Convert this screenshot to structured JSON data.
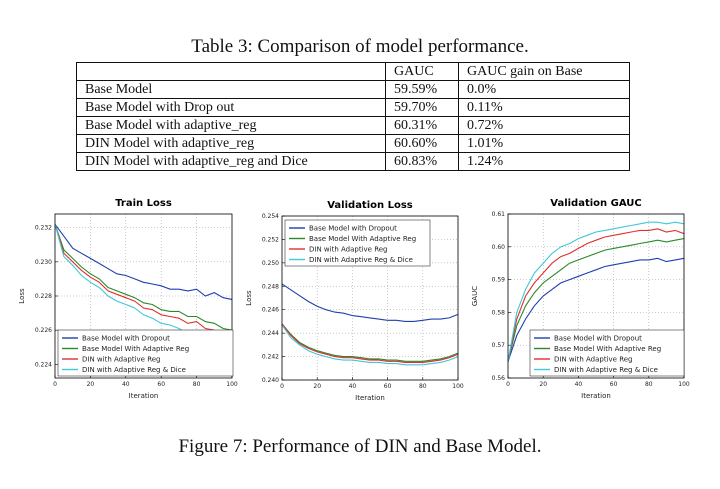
{
  "table": {
    "caption": "Table 3: Comparison of model performance.",
    "header": [
      "",
      "GAUC",
      "GAUC gain on Base"
    ],
    "rows": [
      {
        "model": "Base Model",
        "gauc": "59.59%",
        "gain": "0.0%"
      },
      {
        "model": "Base Model with Drop out",
        "gauc": "59.70%",
        "gain": "0.11%"
      },
      {
        "model": "Base Model with adaptive_reg",
        "gauc": "60.31%",
        "gain": "0.72%"
      },
      {
        "model": "DIN Model with adaptive_reg",
        "gauc": "60.60%",
        "gain": "1.01%"
      },
      {
        "model": "DIN Model with adaptive_reg and Dice",
        "gauc": "60.83%",
        "gain": "1.24%"
      }
    ]
  },
  "figure_caption": "Figure 7: Performance of DIN and Base Model.",
  "colors": {
    "dropout": "#1f3fb0",
    "adaptive": "#2a8a2a",
    "din": "#e03030",
    "dice": "#40c8d8"
  },
  "chart_data": [
    {
      "type": "line",
      "title": "Train Loss",
      "xlabel": "Iteration",
      "ylabel": "Loss",
      "xlim": [
        0,
        100
      ],
      "ylim": [
        0.2232,
        0.2328
      ],
      "xticks": [
        0,
        20,
        40,
        60,
        80,
        100
      ],
      "yticks": [
        0.224,
        0.226,
        0.228,
        0.23,
        0.232
      ],
      "ytick_labels": [
        "0.224",
        "0.226",
        "0.228",
        "0.230",
        "0.232"
      ],
      "grid": true,
      "legend_position": "lower-left",
      "x": [
        0,
        5,
        10,
        15,
        20,
        25,
        30,
        35,
        40,
        45,
        50,
        55,
        60,
        65,
        70,
        75,
        80,
        85,
        90,
        95,
        100
      ],
      "series": [
        {
          "name": "Base Model with Dropout",
          "values": [
            0.2322,
            0.2315,
            0.2308,
            0.2305,
            0.2302,
            0.2299,
            0.2296,
            0.2293,
            0.2292,
            0.229,
            0.2288,
            0.2287,
            0.2286,
            0.2284,
            0.2284,
            0.2283,
            0.2284,
            0.228,
            0.2282,
            0.2279,
            0.2278
          ]
        },
        {
          "name": "Base Model With Adaptive Reg",
          "values": [
            0.2322,
            0.2307,
            0.2302,
            0.2297,
            0.2293,
            0.229,
            0.2285,
            0.2283,
            0.2281,
            0.2279,
            0.2276,
            0.2275,
            0.2272,
            0.2271,
            0.2271,
            0.2268,
            0.2268,
            0.2265,
            0.2264,
            0.2261,
            0.226
          ]
        },
        {
          "name": "DIN with Adaptive Reg",
          "values": [
            0.2322,
            0.2305,
            0.23,
            0.2295,
            0.2291,
            0.2288,
            0.2283,
            0.2281,
            0.2279,
            0.2277,
            0.2273,
            0.2272,
            0.2269,
            0.2268,
            0.2267,
            0.2264,
            0.2265,
            0.2261,
            0.226,
            0.2257,
            0.2256
          ]
        },
        {
          "name": "DIN with Adaptive Reg & Dice",
          "values": [
            0.2322,
            0.2303,
            0.2298,
            0.2292,
            0.2288,
            0.2285,
            0.228,
            0.2277,
            0.2275,
            0.2273,
            0.2269,
            0.2267,
            0.2264,
            0.2263,
            0.2261,
            0.2258,
            0.2259,
            0.2255,
            0.2253,
            0.2249,
            0.2245
          ]
        }
      ]
    },
    {
      "type": "line",
      "title": "Validation Loss",
      "xlabel": "Iteration",
      "ylabel": "Loss",
      "xlim": [
        0,
        100
      ],
      "ylim": [
        0.24,
        0.254
      ],
      "xticks": [
        0,
        20,
        40,
        60,
        80,
        100
      ],
      "yticks": [
        0.24,
        0.242,
        0.244,
        0.246,
        0.248,
        0.25,
        0.252,
        0.254
      ],
      "ytick_labels": [
        "0.240",
        "0.242",
        "0.244",
        "0.246",
        "0.248",
        "0.250",
        "0.252",
        "0.254"
      ],
      "grid": true,
      "legend_position": "top-right",
      "x": [
        0,
        5,
        10,
        15,
        20,
        25,
        30,
        35,
        40,
        45,
        50,
        55,
        60,
        65,
        70,
        75,
        80,
        85,
        90,
        95,
        100
      ],
      "series": [
        {
          "name": "Base Model with Dropout",
          "values": [
            0.2482,
            0.2477,
            0.2472,
            0.2467,
            0.2463,
            0.246,
            0.2458,
            0.2457,
            0.2455,
            0.2454,
            0.2453,
            0.2452,
            0.2451,
            0.2451,
            0.245,
            0.245,
            0.2451,
            0.2452,
            0.2452,
            0.2453,
            0.2456
          ]
        },
        {
          "name": "Base Model With Adaptive Reg",
          "values": [
            0.2448,
            0.2439,
            0.2432,
            0.2428,
            0.2425,
            0.2423,
            0.2421,
            0.242,
            0.242,
            0.2419,
            0.2418,
            0.2418,
            0.2417,
            0.2417,
            0.2416,
            0.2416,
            0.2416,
            0.2417,
            0.2418,
            0.242,
            0.2423
          ]
        },
        {
          "name": "DIN with Adaptive Reg",
          "values": [
            0.2448,
            0.2438,
            0.2431,
            0.2427,
            0.2424,
            0.2422,
            0.242,
            0.2419,
            0.2419,
            0.2418,
            0.2417,
            0.2417,
            0.2416,
            0.2416,
            0.2415,
            0.2415,
            0.2415,
            0.2416,
            0.2417,
            0.2419,
            0.2422
          ]
        },
        {
          "name": "DIN with Adaptive Reg & Dice",
          "values": [
            0.2447,
            0.2436,
            0.243,
            0.2425,
            0.2422,
            0.242,
            0.2418,
            0.2417,
            0.2417,
            0.2416,
            0.2415,
            0.2415,
            0.2414,
            0.2414,
            0.2413,
            0.2413,
            0.2413,
            0.2414,
            0.2415,
            0.2417,
            0.242
          ]
        }
      ]
    },
    {
      "type": "line",
      "title": "Validation GAUC",
      "xlabel": "Iteration",
      "ylabel": "GAUC",
      "xlim": [
        0,
        100
      ],
      "ylim": [
        0.56,
        0.61
      ],
      "xticks": [
        0,
        20,
        40,
        60,
        80,
        100
      ],
      "yticks": [
        0.56,
        0.57,
        0.58,
        0.59,
        0.6,
        0.61
      ],
      "ytick_labels": [
        "0.56",
        "0.57",
        "0.58",
        "0.59",
        "0.60",
        "0.61"
      ],
      "grid": true,
      "legend_position": "lower-right",
      "x": [
        0,
        5,
        10,
        15,
        20,
        25,
        30,
        35,
        40,
        45,
        50,
        55,
        60,
        65,
        70,
        75,
        80,
        85,
        90,
        95,
        100
      ],
      "series": [
        {
          "name": "Base Model with Dropout",
          "values": [
            0.565,
            0.573,
            0.578,
            0.582,
            0.585,
            0.587,
            0.589,
            0.59,
            0.591,
            0.592,
            0.593,
            0.594,
            0.5945,
            0.595,
            0.5955,
            0.596,
            0.596,
            0.5965,
            0.5955,
            0.596,
            0.5965
          ]
        },
        {
          "name": "Base Model With Adaptive Reg",
          "values": [
            0.565,
            0.576,
            0.582,
            0.586,
            0.589,
            0.591,
            0.593,
            0.595,
            0.596,
            0.597,
            0.598,
            0.599,
            0.5995,
            0.6,
            0.6005,
            0.601,
            0.6015,
            0.602,
            0.6015,
            0.602,
            0.6025
          ]
        },
        {
          "name": "DIN with Adaptive Reg",
          "values": [
            0.565,
            0.578,
            0.585,
            0.589,
            0.592,
            0.595,
            0.597,
            0.598,
            0.5995,
            0.601,
            0.602,
            0.603,
            0.6035,
            0.604,
            0.6045,
            0.605,
            0.605,
            0.6055,
            0.6045,
            0.605,
            0.604
          ]
        },
        {
          "name": "DIN with Adaptive Reg & Dice",
          "values": [
            0.565,
            0.58,
            0.587,
            0.592,
            0.595,
            0.598,
            0.6,
            0.601,
            0.6025,
            0.6035,
            0.6045,
            0.605,
            0.6055,
            0.606,
            0.6065,
            0.607,
            0.6075,
            0.6075,
            0.607,
            0.6075,
            0.607
          ]
        }
      ]
    }
  ]
}
